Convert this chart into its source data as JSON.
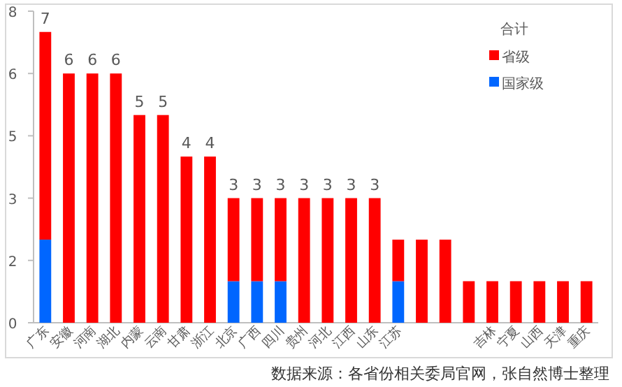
{
  "chart_data": {
    "type": "bar",
    "stacked": true,
    "legend_title": "合计",
    "legend": "top right",
    "categories": [
      "广东",
      "安徽",
      "河南",
      "湖北",
      "内蒙",
      "云南",
      "甘肃",
      "浙江",
      "北京",
      "广西",
      "四川",
      "贵州",
      "河北",
      "江西",
      "山东",
      "江苏",
      null,
      null,
      null,
      "吉林",
      "宁夏",
      "山西",
      "天津",
      "重庆"
    ],
    "series": [
      {
        "name": "国家级",
        "color": "#0066ff",
        "values": [
          2,
          0,
          0,
          0,
          0,
          0,
          0,
          0,
          1,
          1,
          1,
          0,
          0,
          0,
          0,
          1,
          0,
          0,
          0,
          0,
          0,
          0,
          0,
          0
        ]
      },
      {
        "name": "省级",
        "color": "#ff0000",
        "values": [
          5,
          6,
          6,
          6,
          5,
          5,
          4,
          4,
          2,
          2,
          2,
          3,
          3,
          3,
          3,
          1,
          2,
          2,
          1,
          1,
          1,
          1,
          1,
          1
        ]
      }
    ],
    "totals": [
      "7",
      "6",
      "6",
      "6",
      "5",
      "5",
      "4",
      "4",
      "3",
      "3",
      "3",
      "3",
      "3",
      "3",
      "3",
      null,
      null,
      null,
      null,
      null,
      null,
      null,
      null,
      null
    ],
    "ylim": [
      0,
      7.5
    ],
    "yticks": [
      0,
      {
        "value": 1.5,
        "label": "2"
      },
      3,
      {
        "value": 4.5,
        "label": "5"
      },
      6,
      {
        "value": 7.5,
        "label": "8"
      }
    ],
    "grid": false,
    "annotations": [
      "数据来源：各省份相关委局官网，张自然博士整理"
    ]
  }
}
